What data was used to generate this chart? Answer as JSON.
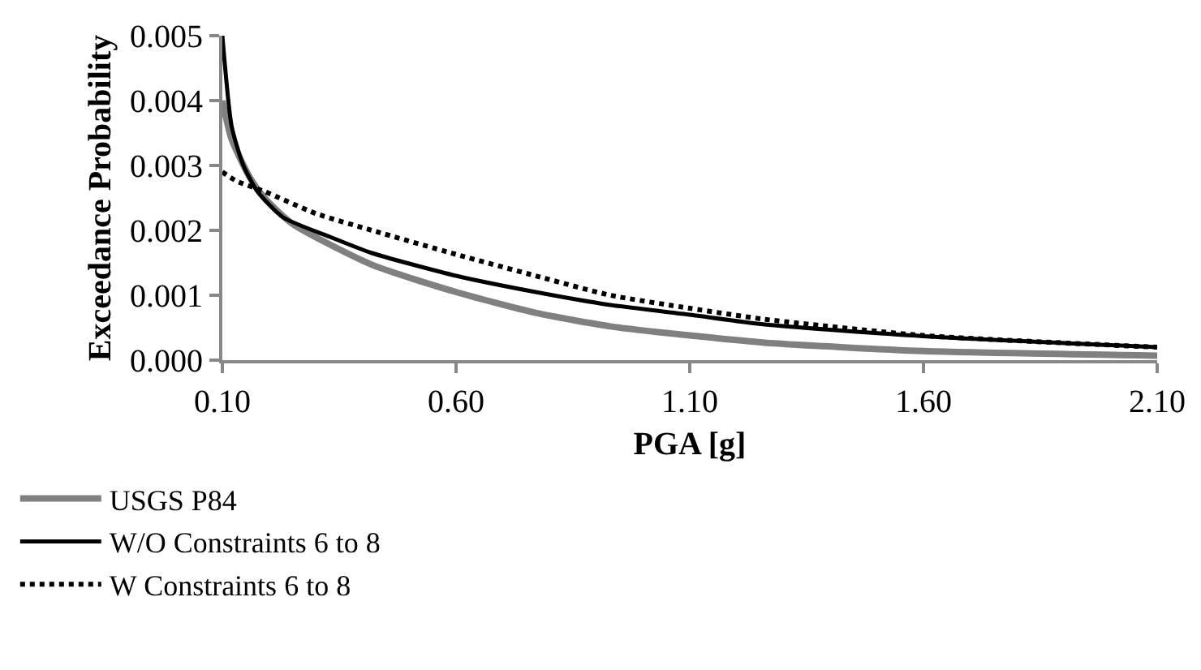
{
  "chart_data": {
    "type": "line",
    "xlabel": "PGA [g]",
    "ylabel": "Exceedance Probability",
    "xlim": [
      0.1,
      2.1
    ],
    "xticks": [
      {
        "value": 0.1,
        "label": "0.10"
      },
      {
        "value": 0.6,
        "label": "0.60"
      },
      {
        "value": 1.1,
        "label": "1.10"
      },
      {
        "value": 1.6,
        "label": "1.60"
      },
      {
        "value": 2.1,
        "label": "2.10"
      }
    ],
    "ylim": [
      0,
      0.005
    ],
    "yticks": [
      {
        "value": 0,
        "label": "0.000"
      },
      {
        "value": 0.001,
        "label": "0.001"
      },
      {
        "value": 0.002,
        "label": "0.002"
      },
      {
        "value": 0.003,
        "label": "0.003"
      },
      {
        "value": 0.004,
        "label": "0.004"
      },
      {
        "value": 0.005,
        "label": "0.005"
      }
    ],
    "grid": false,
    "legend": "bottom",
    "marker": "none",
    "series": [
      {
        "name": "USGS P84",
        "color": "#808080",
        "line_style": "solid",
        "x": [
          0.1,
          0.12,
          0.16,
          0.19,
          0.25,
          0.42,
          0.6,
          0.77,
          0.93,
          1.1,
          1.26,
          1.6,
          2.1
        ],
        "values": [
          0.004,
          0.0034,
          0.0028,
          0.0025,
          0.0021,
          0.00147,
          0.00105,
          0.00073,
          0.00052,
          0.00038,
          0.00027,
          0.00014,
          7e-05
        ]
      },
      {
        "name": "W/O Constraints 6 to 8",
        "color": "#000000",
        "line_style": "solid",
        "x": [
          0.1,
          0.12,
          0.145,
          0.175,
          0.23,
          0.33,
          0.42,
          0.6,
          0.77,
          0.93,
          1.1,
          1.26,
          1.6,
          2.1
        ],
        "values": [
          0.005,
          0.0036,
          0.003,
          0.0026,
          0.0022,
          0.0019,
          0.00165,
          0.0013,
          0.00105,
          0.00085,
          0.0007,
          0.00055,
          0.00037,
          0.0002
        ]
      },
      {
        "name": "W Constraints 6 to 8",
        "color": "#000000",
        "line_style": "dotted",
        "x": [
          0.1,
          0.13,
          0.19,
          0.3,
          0.42,
          0.6,
          0.77,
          0.93,
          1.1,
          1.26,
          1.6,
          2.1
        ],
        "values": [
          0.0029,
          0.00276,
          0.0026,
          0.00226,
          0.002,
          0.00163,
          0.0013,
          0.001,
          0.0008,
          0.00063,
          0.00038,
          0.0002
        ]
      }
    ]
  }
}
